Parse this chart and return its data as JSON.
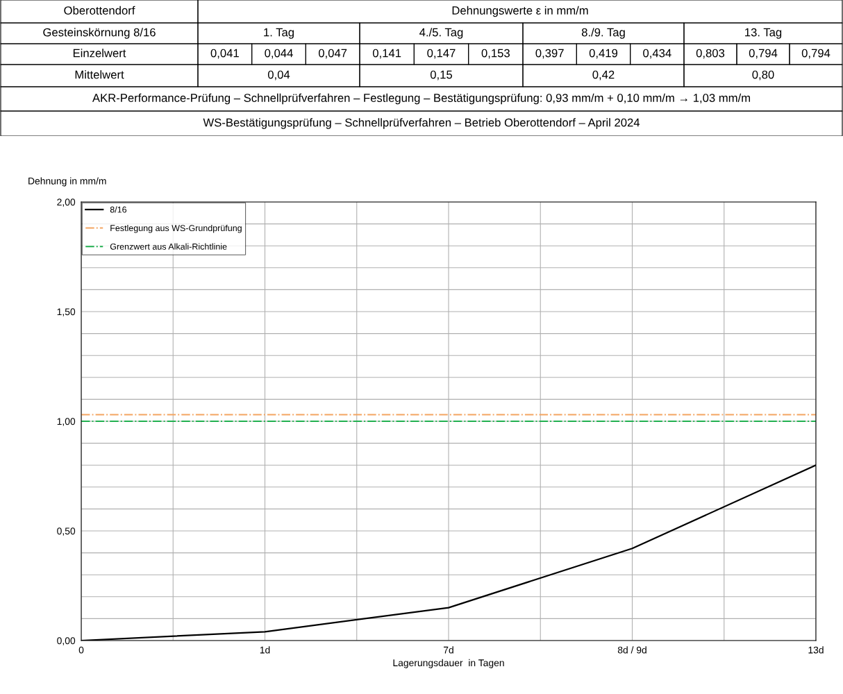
{
  "chart_data": [
    {
      "type": "other",
      "annotations": [
        "Oberottendorf",
        "Dehnungswerte ε in mm/m",
        "Gesteinskörnung 8/16",
        "1. Tag",
        "4./5. Tag",
        "8./9. Tag",
        "13. Tag",
        "Einzelwert",
        "0,041",
        "0,044",
        "0,047",
        "0,141",
        "0,147",
        "0,153",
        "0,397",
        "0,419",
        "0,434",
        "0,803",
        "0,794",
        "0,794",
        "Mittelwert",
        "0,04",
        "0,15",
        "0,42",
        "0,80",
        "AKR-Performance-Prüfung – Schnellprüfverfahren – Festlegung – Bestätigungsprüfung: 0,93 mm/m + 0,10 mm/m → 1,03 mm/m",
        "WS-Bestätigungsprüfung – Schnellprüfverfahren – Betrieb Oberottendorf – April 2024"
      ]
    },
    {
      "type": "line",
      "ylabel": "Dehnung in mm/m",
      "xlabel": "Lagerungsdauer  in Tagen",
      "categories": [
        "0",
        "1d",
        "7d",
        "8d / 9d",
        "13d"
      ],
      "series": [
        {
          "name": "8/16",
          "color": "#000000",
          "values": [
            0,
            0.04,
            0.15,
            0.42,
            0.8
          ]
        }
      ],
      "ylim": [
        0,
        2
      ],
      "yticks": [
        {
          "value": 0,
          "label": "0,00"
        },
        {
          "value": 0.1,
          "label": null
        },
        {
          "value": 0.2,
          "label": null
        },
        {
          "value": 0.3,
          "label": null
        },
        {
          "value": 0.4,
          "label": null
        },
        {
          "value": 0.5,
          "label": "0,50"
        },
        {
          "value": 0.6,
          "label": null
        },
        {
          "value": 0.7,
          "label": null
        },
        {
          "value": 0.8,
          "label": null
        },
        {
          "value": 0.9,
          "label": null
        },
        {
          "value": 1,
          "label": "1,00"
        },
        {
          "value": 1.1,
          "label": null
        },
        {
          "value": 1.2,
          "label": null
        },
        {
          "value": 1.3,
          "label": null
        },
        {
          "value": 1.4,
          "label": null
        },
        {
          "value": 1.5,
          "label": "1,50"
        },
        {
          "value": 1.6,
          "label": null
        },
        {
          "value": 1.7,
          "label": null
        },
        {
          "value": 1.8,
          "label": null
        },
        {
          "value": 1.9,
          "label": null
        },
        {
          "value": 2,
          "label": "2,00"
        }
      ],
      "ref_lines": [
        {
          "axis": "y",
          "value": 1.03,
          "label": "Festlegung aus WS-Grundprüfung",
          "color": "#f4a460",
          "line_style": "dashdot"
        },
        {
          "axis": "y",
          "value": 1.0,
          "label": "Grenzwert aus Alkali-Richtlinie",
          "color": "#22b050",
          "line_style": "dashdot"
        }
      ],
      "grid": true,
      "legend": "top left",
      "line_style": "solid",
      "marker": "none"
    }
  ]
}
